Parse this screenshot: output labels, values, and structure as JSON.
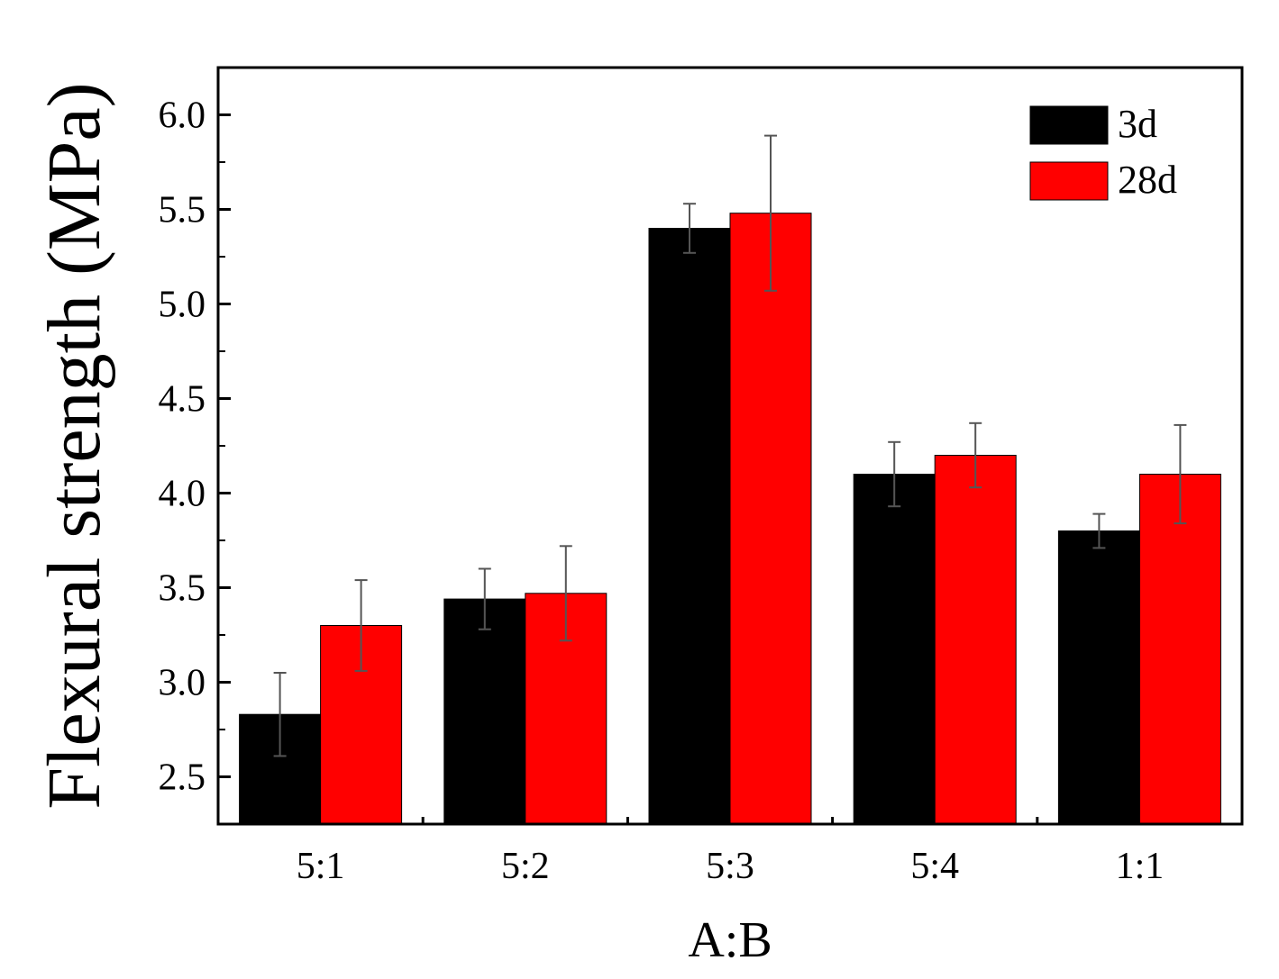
{
  "chart_data": {
    "type": "bar",
    "xlabel": "A:B",
    "ylabel": "Flexural strength (MPa)",
    "categories": [
      "5:1",
      "5:2",
      "5:3",
      "5:4",
      "1:1"
    ],
    "series": [
      {
        "name": "3d",
        "color": "#000000",
        "values": [
          2.83,
          3.44,
          5.4,
          4.1,
          3.8
        ],
        "errors": [
          0.22,
          0.16,
          0.13,
          0.17,
          0.09
        ]
      },
      {
        "name": "28d",
        "color": "#ff0000",
        "values": [
          3.3,
          3.47,
          5.48,
          4.2,
          4.1
        ],
        "errors": [
          0.24,
          0.25,
          0.41,
          0.17,
          0.26
        ]
      }
    ],
    "ylim": [
      2.25,
      6.25
    ],
    "yticks": [
      "2.5",
      "3.0",
      "3.5",
      "4.0",
      "4.5",
      "5.0",
      "5.5",
      "6.0"
    ],
    "legend": "top-right",
    "grid": false
  }
}
